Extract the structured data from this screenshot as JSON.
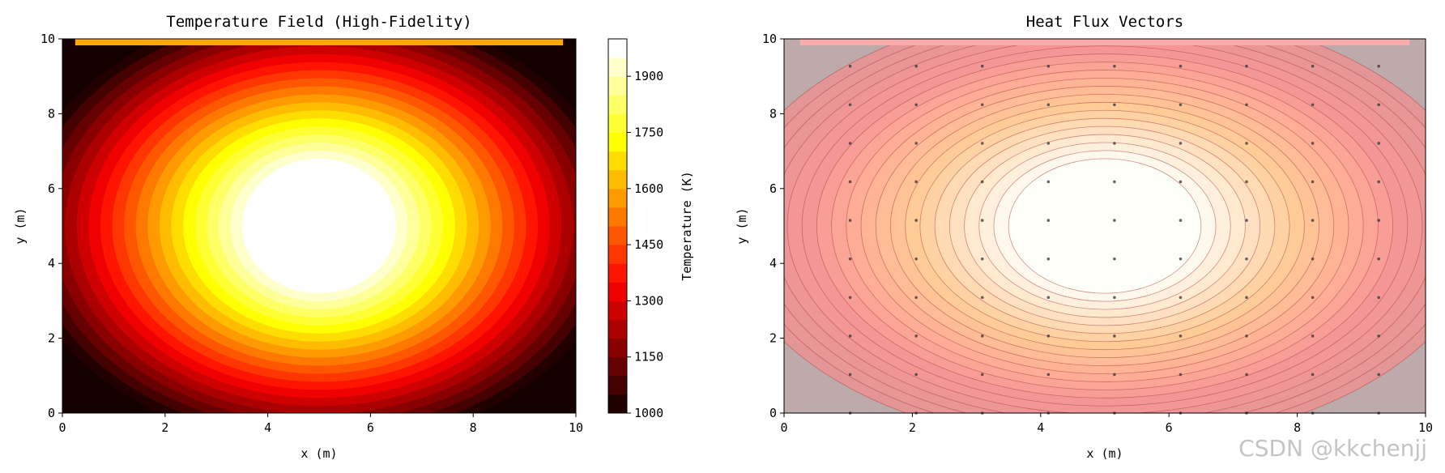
{
  "chart_data": [
    {
      "type": "heatmap",
      "title": "Temperature Field (High-Fidelity)",
      "xlabel": "x (m)",
      "ylabel": "y (m)",
      "xlim": [
        0,
        10
      ],
      "ylim": [
        0,
        10
      ],
      "xticks": [
        0,
        2,
        4,
        6,
        8,
        10
      ],
      "yticks": [
        0,
        2,
        4,
        6,
        8,
        10
      ],
      "colormap": "hot",
      "field": {
        "center": [
          5,
          5
        ],
        "peak": 2000,
        "edge_min": 1000
      },
      "levels": [
        1000,
        1050,
        1100,
        1150,
        1200,
        1250,
        1300,
        1350,
        1400,
        1450,
        1500,
        1550,
        1600,
        1650,
        1700,
        1750,
        1800,
        1850,
        1900,
        1950,
        2000
      ],
      "colorbar": {
        "label": "Temperature (K)",
        "ticks": [
          1000,
          1150,
          1300,
          1450,
          1600,
          1750,
          1900
        ],
        "range": [
          1000,
          2000
        ]
      },
      "grid": false
    },
    {
      "type": "heatmap",
      "title": "Heat Flux Vectors",
      "xlabel": "x (m)",
      "ylabel": "y (m)",
      "xlim": [
        0,
        10
      ],
      "ylim": [
        0,
        10
      ],
      "xticks": [
        0,
        2,
        4,
        6,
        8,
        10
      ],
      "yticks": [
        0,
        2,
        4,
        6,
        8,
        10
      ],
      "overlay": "quiver",
      "vector_grid_x": [
        1.03,
        2.06,
        3.09,
        4.12,
        5.15,
        6.18,
        7.21,
        8.24,
        9.27
      ],
      "vector_grid_y": [
        0,
        1.03,
        2.06,
        3.09,
        4.12,
        5.15,
        6.18,
        7.21,
        8.24,
        9.27
      ],
      "grid": false
    }
  ],
  "watermark": "CSDN @kkchenjj"
}
